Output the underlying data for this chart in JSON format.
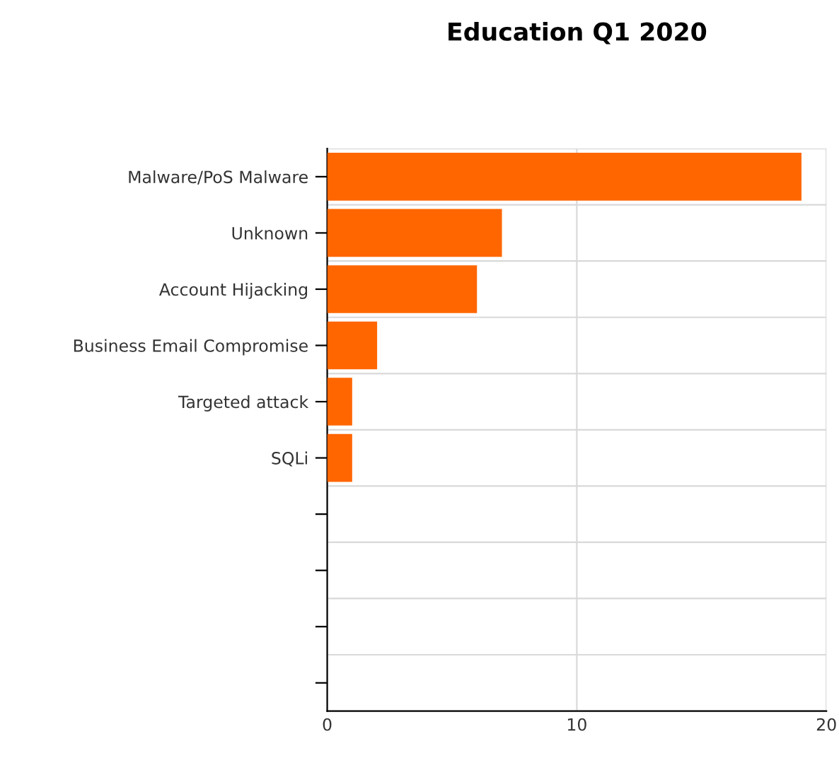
{
  "chart_data": {
    "type": "bar",
    "orientation": "horizontal",
    "title": "Education Q1 2020",
    "categories": [
      "Malware/PoS Malware",
      "Unknown",
      "Account Hijacking",
      "Business Email Compromise",
      "Targeted attack",
      "SQLi",
      null,
      null,
      null,
      null
    ],
    "values": [
      19,
      7,
      6,
      2,
      1,
      1,
      null,
      null,
      null,
      null
    ],
    "color": "#ff6600",
    "xlim": [
      0,
      20
    ],
    "xticks": [
      0,
      10,
      20
    ],
    "grid": true
  }
}
